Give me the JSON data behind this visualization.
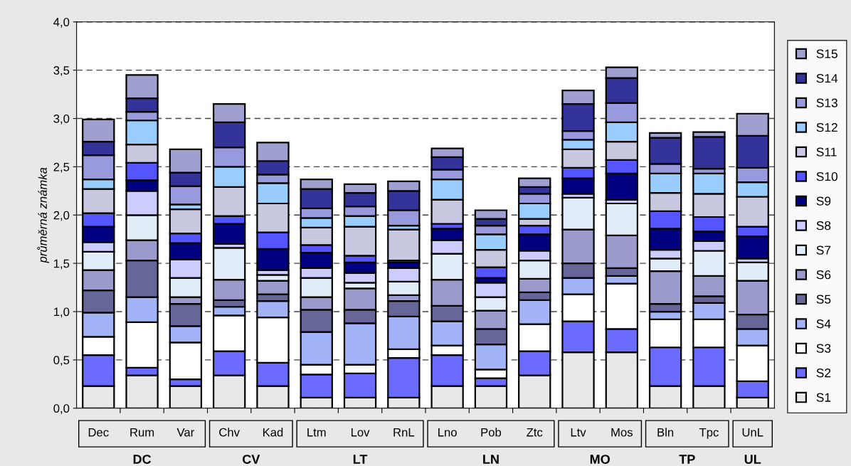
{
  "chart_data": {
    "type": "bar",
    "stacked": true,
    "ylabel": "průměrná známka",
    "categories": [
      "Dec",
      "Rum",
      "Var",
      "Chv",
      "Kad",
      "Ltm",
      "Lov",
      "RnL",
      "Lno",
      "Pob",
      "Ztc",
      "Ltv",
      "Mos",
      "Bln",
      "Tpc",
      "UnL"
    ],
    "series": [
      {
        "name": "S1",
        "color": "#e8e8e8",
        "values": [
          0.23,
          0.34,
          0.23,
          0.34,
          0.23,
          0.11,
          0.11,
          0.11,
          0.23,
          0.23,
          0.34,
          0.58,
          0.58,
          0.23,
          0.23,
          0.11
        ]
      },
      {
        "name": "S2",
        "color": "#6b6bff",
        "values": [
          0.32,
          0.08,
          0.07,
          0.25,
          0.24,
          0.24,
          0.25,
          0.41,
          0.32,
          0.08,
          0.25,
          0.32,
          0.24,
          0.4,
          0.4,
          0.17
        ]
      },
      {
        "name": "S3",
        "color": "#ffffff",
        "values": [
          0.19,
          0.47,
          0.38,
          0.37,
          0.47,
          0.1,
          0.09,
          0.09,
          0.1,
          0.09,
          0.28,
          0.28,
          0.47,
          0.29,
          0.29,
          0.37
        ]
      },
      {
        "name": "S4",
        "color": "#a3b3f7",
        "values": [
          0.25,
          0.26,
          0.17,
          0.09,
          0.17,
          0.34,
          0.43,
          0.34,
          0.25,
          0.26,
          0.25,
          0.17,
          0.08,
          0.08,
          0.17,
          0.17
        ]
      },
      {
        "name": "S5",
        "color": "#666699",
        "values": [
          0.23,
          0.38,
          0.23,
          0.07,
          0.07,
          0.23,
          0.14,
          0.16,
          0.16,
          0.16,
          0.08,
          0.15,
          0.08,
          0.08,
          0.07,
          0.15
        ]
      },
      {
        "name": "S6",
        "color": "#9a9acc",
        "values": [
          0.21,
          0.21,
          0.07,
          0.21,
          0.14,
          0.13,
          0.22,
          0.06,
          0.27,
          0.19,
          0.14,
          0.35,
          0.34,
          0.34,
          0.21,
          0.35
        ]
      },
      {
        "name": "S7",
        "color": "#e0ecf8",
        "values": [
          0.19,
          0.26,
          0.2,
          0.33,
          0.06,
          0.2,
          0.06,
          0.14,
          0.27,
          0.14,
          0.19,
          0.33,
          0.33,
          0.13,
          0.26,
          0.19
        ]
      },
      {
        "name": "S8",
        "color": "#ccccff",
        "values": [
          0.1,
          0.25,
          0.19,
          0.04,
          0.05,
          0.1,
          0.1,
          0.14,
          0.14,
          0.15,
          0.1,
          0.04,
          0.04,
          0.09,
          0.1,
          0.04
        ]
      },
      {
        "name": "S9",
        "color": "#000080",
        "values": [
          0.16,
          0.11,
          0.17,
          0.21,
          0.22,
          0.16,
          0.11,
          0.06,
          0.12,
          0.05,
          0.17,
          0.16,
          0.27,
          0.22,
          0.1,
          0.23
        ]
      },
      {
        "name": "S10",
        "color": "#5555ff",
        "values": [
          0.14,
          0.18,
          0.1,
          0.08,
          0.17,
          0.08,
          0.07,
          0.02,
          0.05,
          0.11,
          0.09,
          0.11,
          0.14,
          0.18,
          0.15,
          0.1
        ]
      },
      {
        "name": "S11",
        "color": "#c8c8e0",
        "values": [
          0.25,
          0.19,
          0.25,
          0.3,
          0.3,
          0.18,
          0.3,
          0.32,
          0.25,
          0.18,
          0.07,
          0.19,
          0.19,
          0.19,
          0.24,
          0.31
        ]
      },
      {
        "name": "S12",
        "color": "#99ccff",
        "values": [
          0.1,
          0.25,
          0.05,
          0.21,
          0.21,
          0.1,
          0.11,
          0.04,
          0.21,
          0.16,
          0.16,
          0.1,
          0.2,
          0.2,
          0.21,
          0.15
        ]
      },
      {
        "name": "S13",
        "color": "#9999dd",
        "values": [
          0.25,
          0.09,
          0.19,
          0.2,
          0.09,
          0.1,
          0.1,
          0.16,
          0.1,
          0.09,
          0.1,
          0.09,
          0.2,
          0.1,
          0.05,
          0.15
        ]
      },
      {
        "name": "S14",
        "color": "#333399",
        "values": [
          0.14,
          0.14,
          0.14,
          0.26,
          0.14,
          0.2,
          0.14,
          0.2,
          0.13,
          0.07,
          0.07,
          0.28,
          0.26,
          0.27,
          0.33,
          0.33
        ]
      },
      {
        "name": "S15",
        "color": "#a0a0d0",
        "values": [
          0.23,
          0.24,
          0.24,
          0.19,
          0.19,
          0.1,
          0.09,
          0.1,
          0.09,
          0.09,
          0.09,
          0.14,
          0.11,
          0.05,
          0.05,
          0.23
        ]
      }
    ],
    "ylim": [
      0,
      4
    ],
    "yticks": [
      {
        "value": 0,
        "label": "0,0"
      },
      {
        "value": 0.5,
        "label": "0,5"
      },
      {
        "value": 1,
        "label": "1,0"
      },
      {
        "value": 1.5,
        "label": "1,5"
      },
      {
        "value": 2,
        "label": "2,0"
      },
      {
        "value": 2.5,
        "label": "2,5"
      },
      {
        "value": 3,
        "label": "3,0"
      },
      {
        "value": 3.5,
        "label": "3,5"
      },
      {
        "value": 4,
        "label": "4,0"
      }
    ],
    "grid": "y",
    "legend": "right",
    "annotations": [
      "DC",
      "CV",
      "LT",
      "LN",
      "MO",
      "TP",
      "UL"
    ]
  }
}
